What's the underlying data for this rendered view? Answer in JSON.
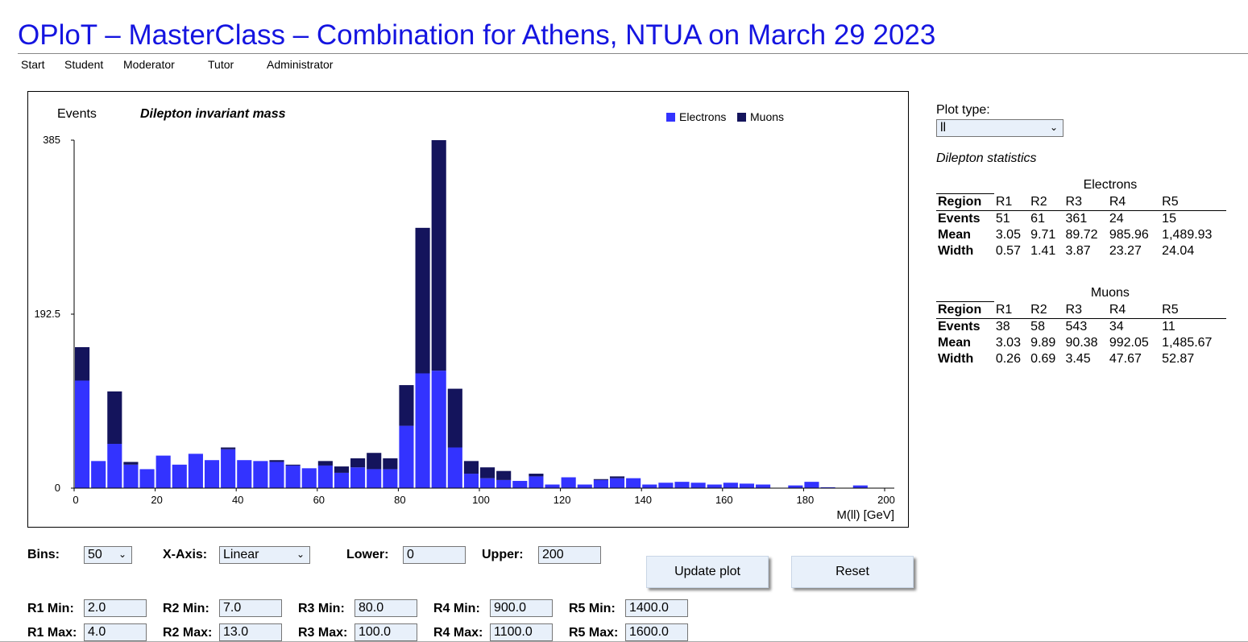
{
  "page": {
    "title": "OPloT – MasterClass – Combination for Athens, NTUA on March 29 2023"
  },
  "nav": {
    "items": [
      {
        "label": "Start"
      },
      {
        "label": "Student"
      },
      {
        "label": "Moderator"
      },
      {
        "label": "Tutor"
      },
      {
        "label": "Administrator"
      }
    ]
  },
  "chart_data": {
    "type": "bar",
    "stacked": true,
    "title": "Dilepton invariant mass",
    "ylabel": "Events",
    "xlabel": "M(ll) [GeV]",
    "xlim": [
      0,
      200
    ],
    "ylim": [
      0,
      385
    ],
    "yticks": [
      "0",
      "192.5",
      "385"
    ],
    "xticks": [
      "0",
      "20",
      "40",
      "60",
      "80",
      "100",
      "120",
      "140",
      "160",
      "180",
      "200"
    ],
    "bin_width": 4,
    "legend_position": "top-right",
    "x": [
      2,
      6,
      10,
      14,
      18,
      22,
      26,
      30,
      34,
      38,
      42,
      46,
      50,
      54,
      58,
      62,
      66,
      70,
      74,
      78,
      82,
      86,
      90,
      94,
      98,
      102,
      106,
      110,
      114,
      118,
      122,
      126,
      130,
      134,
      138,
      142,
      146,
      150,
      154,
      158,
      162,
      166,
      170,
      174,
      178,
      182,
      186,
      190,
      194,
      198
    ],
    "series": [
      {
        "name": "Electrons",
        "color": "#3333ff",
        "values": [
          119,
          30,
          49,
          26,
          21,
          36,
          26,
          38,
          31,
          43,
          31,
          30,
          29,
          25,
          22,
          25,
          17,
          23,
          21,
          21,
          69,
          127,
          130,
          45,
          16,
          11,
          9,
          8,
          13,
          4,
          12,
          4,
          9,
          11,
          11,
          4,
          6,
          7,
          6,
          4,
          6,
          5,
          4,
          0,
          3,
          7,
          1,
          0,
          3,
          0
        ]
      },
      {
        "name": "Muons",
        "color": "#14145c",
        "values": [
          37,
          0,
          58,
          3,
          0,
          0,
          0,
          0,
          0,
          2,
          0,
          0,
          2,
          1,
          0,
          5,
          7,
          10,
          18,
          12,
          45,
          161,
          255,
          65,
          14,
          12,
          10,
          0,
          3,
          0,
          0,
          0,
          1,
          2,
          0,
          0,
          0,
          0,
          0,
          0,
          0,
          0,
          0,
          0,
          0,
          0,
          0,
          0,
          0,
          0
        ]
      }
    ]
  },
  "right_panel": {
    "plot_type_label": "Plot type:",
    "plot_type_value": "ll",
    "stats_title": "Dilepton statistics",
    "tables": [
      {
        "caption": "Electrons",
        "header": [
          "Region",
          "R1",
          "R2",
          "R3",
          "R4",
          "R5"
        ],
        "rows": [
          [
            "Events",
            "51",
            "61",
            "361",
            "24",
            "15"
          ],
          [
            "Mean",
            "3.05",
            "9.71",
            "89.72",
            "985.96",
            "1,489.93"
          ],
          [
            "Width",
            "0.57",
            "1.41",
            "3.87",
            "23.27",
            "24.04"
          ]
        ]
      },
      {
        "caption": "Muons",
        "header": [
          "Region",
          "R1",
          "R2",
          "R3",
          "R4",
          "R5"
        ],
        "rows": [
          [
            "Events",
            "38",
            "58",
            "543",
            "34",
            "11"
          ],
          [
            "Mean",
            "3.03",
            "9.89",
            "90.38",
            "992.05",
            "1,485.67"
          ],
          [
            "Width",
            "0.26",
            "0.69",
            "3.45",
            "47.67",
            "52.87"
          ]
        ]
      }
    ]
  },
  "controls": {
    "bins_label": "Bins:",
    "bins_value": "50",
    "xaxis_label": "X-Axis:",
    "xaxis_value": "Linear",
    "lower_label": "Lower:",
    "lower_value": "0",
    "upper_label": "Upper:",
    "upper_value": "200",
    "update_label": "Update plot",
    "reset_label": "Reset",
    "regions": [
      {
        "min_label": "R1 Min:",
        "min_value": "2.0",
        "max_label": "R1 Max:",
        "max_value": "4.0"
      },
      {
        "min_label": "R2 Min:",
        "min_value": "7.0",
        "max_label": "R2 Max:",
        "max_value": "13.0"
      },
      {
        "min_label": "R3 Min:",
        "min_value": "80.0",
        "max_label": "R3 Max:",
        "max_value": "100.0"
      },
      {
        "min_label": "R4 Min:",
        "min_value": "900.0",
        "max_label": "R4 Max:",
        "max_value": "1100.0"
      },
      {
        "min_label": "R5 Min:",
        "min_value": "1400.0",
        "max_label": "R5 Max:",
        "max_value": "1600.0"
      }
    ]
  }
}
